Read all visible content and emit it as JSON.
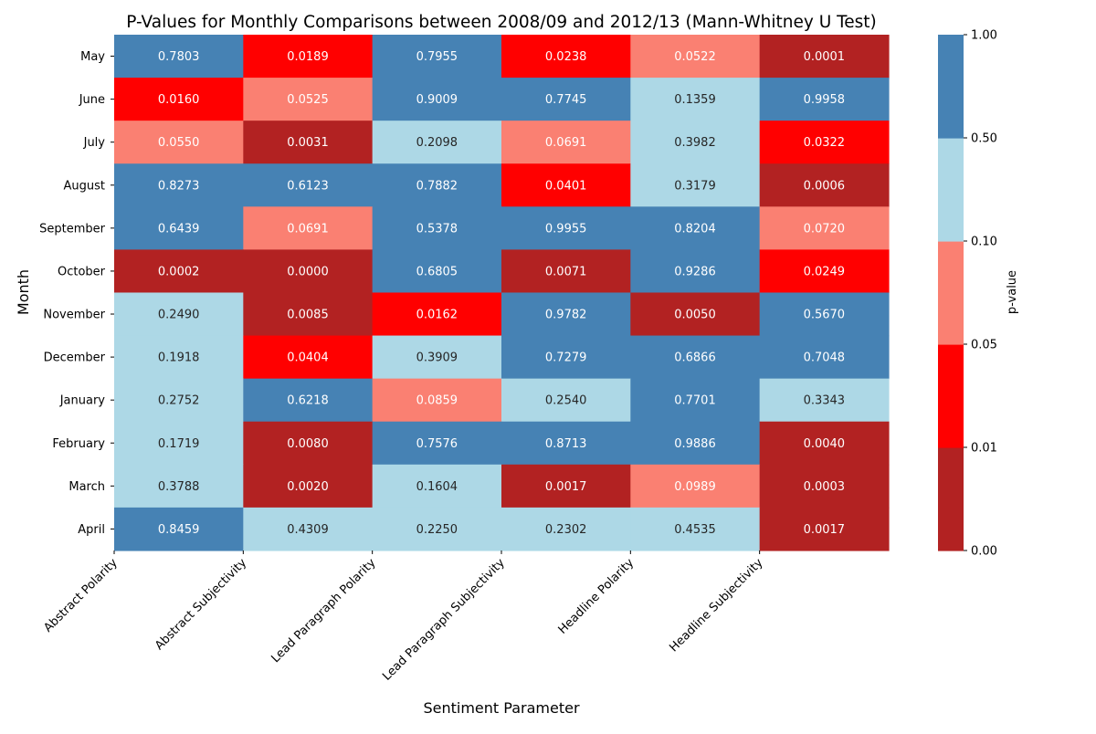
{
  "chart_data": {
    "type": "heatmap",
    "title": "P-Values for Monthly Comparisons between 2008/09 and 2012/13 (Mann-Whitney U Test)",
    "xlabel": "Sentiment Parameter",
    "ylabel": "Month",
    "colorbar_label": "p-value",
    "columns": [
      "Abstract Polarity",
      "Abstract Subjectivity",
      "Lead Paragraph Polarity",
      "Lead Paragraph Subjectivity",
      "Headline Polarity",
      "Headline Subjectivity"
    ],
    "rows": [
      "May",
      "June",
      "July",
      "August",
      "September",
      "October",
      "November",
      "December",
      "January",
      "February",
      "March",
      "April"
    ],
    "values": [
      [
        0.7803,
        0.0189,
        0.7955,
        0.0238,
        0.0522,
        0.0001
      ],
      [
        0.016,
        0.0525,
        0.9009,
        0.7745,
        0.1359,
        0.9958
      ],
      [
        0.055,
        0.0031,
        0.2098,
        0.0691,
        0.3982,
        0.0322
      ],
      [
        0.8273,
        0.6123,
        0.7882,
        0.0401,
        0.3179,
        0.0006
      ],
      [
        0.6439,
        0.0691,
        0.5378,
        0.9955,
        0.8204,
        0.072
      ],
      [
        0.0002,
        0.0,
        0.6805,
        0.0071,
        0.9286,
        0.0249
      ],
      [
        0.249,
        0.0085,
        0.0162,
        0.9782,
        0.005,
        0.567
      ],
      [
        0.1918,
        0.0404,
        0.3909,
        0.7279,
        0.6866,
        0.7048
      ],
      [
        0.2752,
        0.6218,
        0.0859,
        0.254,
        0.7701,
        0.3343
      ],
      [
        0.1719,
        0.008,
        0.7576,
        0.8713,
        0.9886,
        0.004
      ],
      [
        0.3788,
        0.002,
        0.1604,
        0.0017,
        0.0989,
        0.0003
      ],
      [
        0.8459,
        0.4309,
        0.225,
        0.2302,
        0.4535,
        0.0017
      ]
    ],
    "value_labels": [
      [
        "0.7803",
        "0.0189",
        "0.7955",
        "0.0238",
        "0.0522",
        "0.0001"
      ],
      [
        "0.0160",
        "0.0525",
        "0.9009",
        "0.7745",
        "0.1359",
        "0.9958"
      ],
      [
        "0.0550",
        "0.0031",
        "0.2098",
        "0.0691",
        "0.3982",
        "0.0322"
      ],
      [
        "0.8273",
        "0.6123",
        "0.7882",
        "0.0401",
        "0.3179",
        "0.0006"
      ],
      [
        "0.6439",
        "0.0691",
        "0.5378",
        "0.9955",
        "0.8204",
        "0.0720"
      ],
      [
        "0.0002",
        "0.0000",
        "0.6805",
        "0.0071",
        "0.9286",
        "0.0249"
      ],
      [
        "0.2490",
        "0.0085",
        "0.0162",
        "0.9782",
        "0.0050",
        "0.5670"
      ],
      [
        "0.1918",
        "0.0404",
        "0.3909",
        "0.7279",
        "0.6866",
        "0.7048"
      ],
      [
        "0.2752",
        "0.6218",
        "0.0859",
        "0.2540",
        "0.7701",
        "0.3343"
      ],
      [
        "0.1719",
        "0.0080",
        "0.7576",
        "0.8713",
        "0.9886",
        "0.0040"
      ],
      [
        "0.3788",
        "0.0020",
        "0.1604",
        "0.0017",
        "0.0989",
        "0.0003"
      ],
      [
        "0.8459",
        "0.4309",
        "0.2250",
        "0.2302",
        "0.4535",
        "0.0017"
      ]
    ],
    "color_bounds": [
      0.0,
      0.01,
      0.05,
      0.1,
      0.5,
      1.0
    ],
    "color_bound_labels": [
      "0.00",
      "0.01",
      "0.05",
      "0.10",
      "0.50",
      "1.00"
    ],
    "color_bins": [
      "#b22222",
      "#ff0000",
      "#fa8072",
      "#add8e6",
      "#4682b4"
    ],
    "light_text_bins": [
      0,
      1,
      2,
      4
    ],
    "text_colors": {
      "light": "#ffffff",
      "dark": "#262626"
    }
  }
}
